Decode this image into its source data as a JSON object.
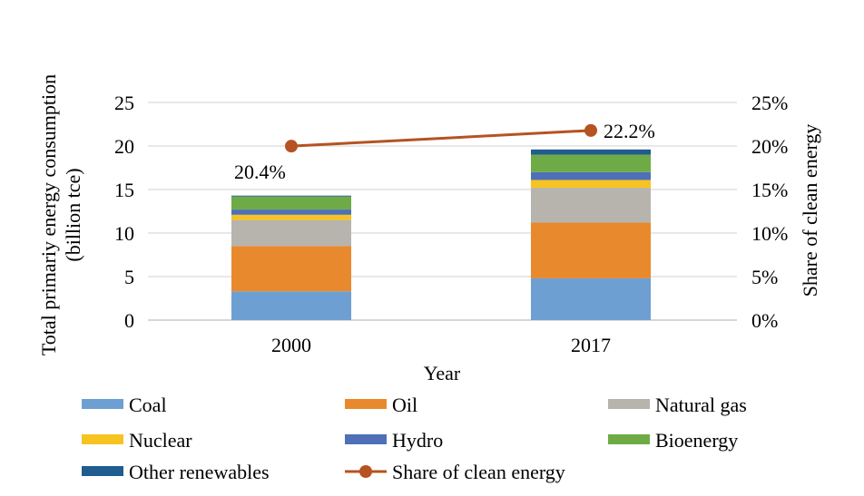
{
  "chart_data": {
    "type": "bar",
    "stacked": true,
    "categories": [
      "2000",
      "2017"
    ],
    "series": [
      {
        "name": "Coal",
        "values": [
          3.3,
          4.8
        ],
        "color": "#6e9fd2"
      },
      {
        "name": "Oil",
        "values": [
          5.2,
          6.4
        ],
        "color": "#e9892e"
      },
      {
        "name": "Natural gas",
        "values": [
          3.0,
          4.0
        ],
        "color": "#b7b4ae"
      },
      {
        "name": "Nuclear",
        "values": [
          0.6,
          0.9
        ],
        "color": "#f6c321"
      },
      {
        "name": "Hydro",
        "values": [
          0.6,
          0.9
        ],
        "color": "#4f6fb8"
      },
      {
        "name": "Bioenergy",
        "values": [
          1.5,
          2.0
        ],
        "color": "#6eab47"
      },
      {
        "name": "Other renewables",
        "values": [
          0.1,
          0.6
        ],
        "color": "#1f5c8f"
      }
    ],
    "line_series": {
      "name": "Share of clean energy",
      "values": [
        20.4,
        22.2
      ],
      "labels": [
        "20.4%",
        "22.2%"
      ],
      "color": "#b55322",
      "axis": "right"
    },
    "xlabel": "Year",
    "ylabel": "Total primariy energy consumption (billion tce)",
    "ylabel_lines": [
      "Total primariy energy consumption",
      "(billion tce)"
    ],
    "y2label": "Share of clean energy",
    "ylim": [
      0,
      25
    ],
    "yticks": [
      0,
      5,
      10,
      15,
      20,
      25
    ],
    "ytick_labels": [
      "0",
      "5",
      "10",
      "15",
      "20",
      "25"
    ],
    "y2lim": [
      0,
      25
    ],
    "y2ticks": [
      0,
      5,
      10,
      15,
      20,
      25
    ],
    "y2tick_labels": [
      "0%",
      "5%",
      "10%",
      "15%",
      "20%",
      "25%"
    ],
    "grid": true,
    "legend": "bottom"
  }
}
